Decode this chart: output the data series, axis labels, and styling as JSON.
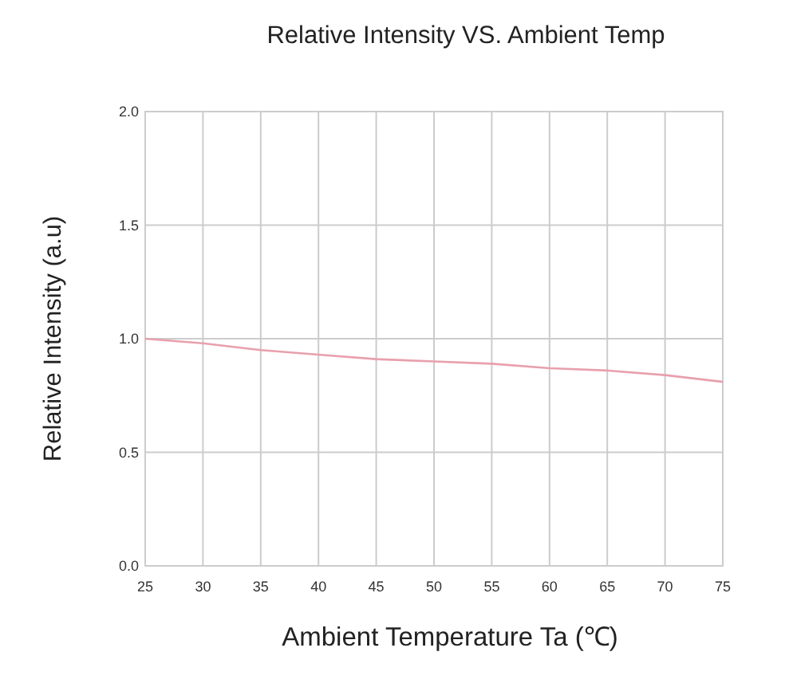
{
  "chart_data": {
    "type": "line",
    "title": "Relative Intensity VS. Ambient Temp",
    "xlabel": "Ambient Temperature Ta (℃)",
    "ylabel": "Relative Intensity (a.u)",
    "x": [
      25,
      30,
      35,
      40,
      45,
      50,
      55,
      60,
      65,
      70,
      75
    ],
    "series": [
      {
        "color": "#e8a0ac",
        "values": [
          1.0,
          0.98,
          0.95,
          0.93,
          0.91,
          0.9,
          0.89,
          0.87,
          0.86,
          0.84,
          0.81
        ]
      }
    ],
    "xlim": [
      25,
      75
    ],
    "xticks": [
      25,
      30,
      35,
      40,
      45,
      50,
      55,
      60,
      65,
      70,
      75
    ],
    "ylim": [
      0,
      2
    ],
    "yticks": [
      {
        "value": 0,
        "label": "0.0"
      },
      0.5,
      {
        "value": 1,
        "label": "1.0"
      },
      1.5,
      {
        "value": 2,
        "label": "2.0"
      }
    ],
    "grid": true,
    "marker": "none",
    "line_style": "solid"
  }
}
